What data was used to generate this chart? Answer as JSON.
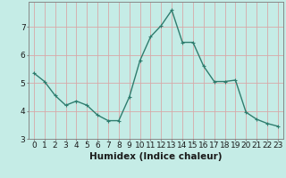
{
  "x": [
    0,
    1,
    2,
    3,
    4,
    5,
    6,
    7,
    8,
    9,
    10,
    11,
    12,
    13,
    14,
    15,
    16,
    17,
    18,
    19,
    20,
    21,
    22,
    23
  ],
  "y": [
    5.35,
    5.05,
    4.55,
    4.2,
    4.35,
    4.2,
    3.85,
    3.65,
    3.65,
    4.5,
    5.8,
    6.65,
    7.05,
    7.6,
    6.45,
    6.45,
    5.6,
    5.05,
    5.05,
    5.1,
    3.95,
    3.7,
    3.55,
    3.45
  ],
  "line_color": "#2e7d6e",
  "marker": "+",
  "bg_color": "#c5ece6",
  "grid_color": "#d8a8a8",
  "xlabel": "Humidex (Indice chaleur)",
  "ylim": [
    3.0,
    7.9
  ],
  "xlim": [
    -0.5,
    23.5
  ],
  "yticks": [
    3,
    4,
    5,
    6,
    7
  ],
  "xticks": [
    0,
    1,
    2,
    3,
    4,
    5,
    6,
    7,
    8,
    9,
    10,
    11,
    12,
    13,
    14,
    15,
    16,
    17,
    18,
    19,
    20,
    21,
    22,
    23
  ],
  "xlabel_fontsize": 7.5,
  "tick_fontsize": 6.5,
  "line_width": 1.0,
  "marker_size": 3.5,
  "spine_color": "#888888"
}
